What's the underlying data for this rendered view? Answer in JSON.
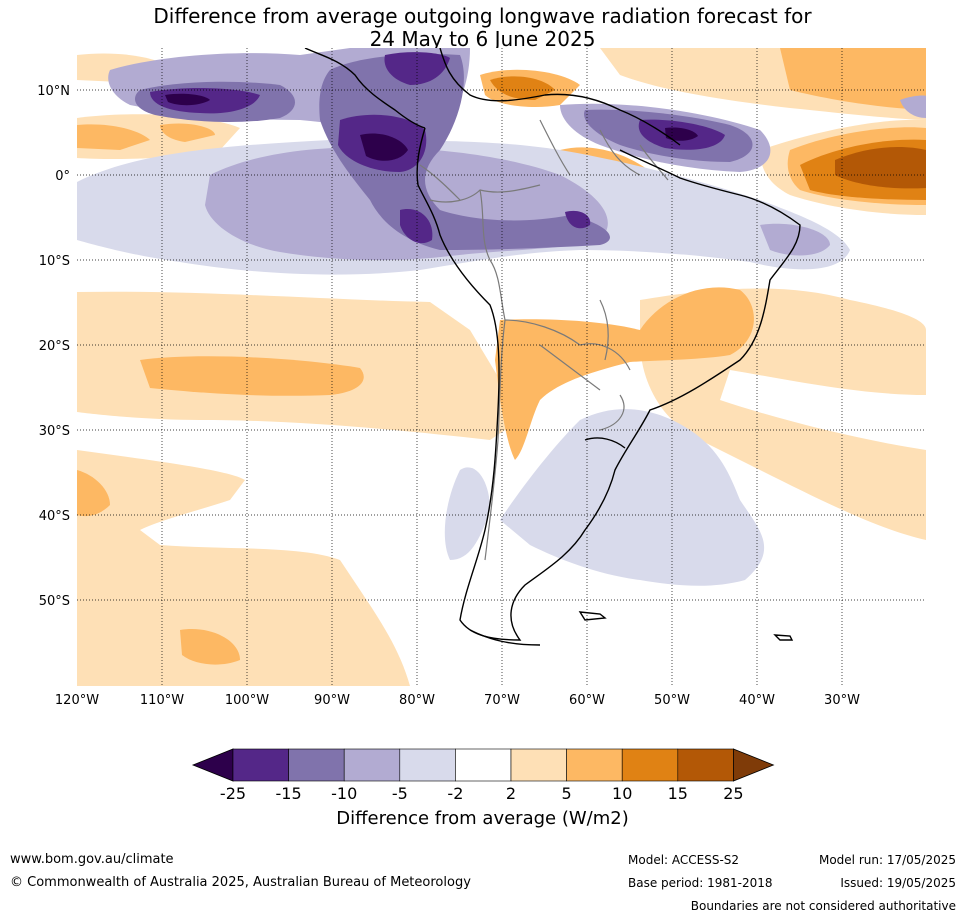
{
  "title_line1": "Difference from average outgoing longwave radiation forecast for",
  "title_line2": "24 May to 6 June 2025",
  "lat_labels": [
    "10°N",
    "0°",
    "10°S",
    "20°S",
    "30°S",
    "40°S",
    "50°S"
  ],
  "lon_labels": [
    "120°W",
    "110°W",
    "100°W",
    "90°W",
    "80°W",
    "70°W",
    "60°W",
    "50°W",
    "40°W",
    "30°W"
  ],
  "colorbar": {
    "ticks": [
      "-25",
      "-15",
      "-10",
      "-5",
      "-2",
      "2",
      "5",
      "10",
      "15",
      "25"
    ],
    "colors": [
      "#2d004b",
      "#542788",
      "#8073ac",
      "#b2abd2",
      "#d8daeb",
      "#ffffff",
      "#fee0b6",
      "#fdb863",
      "#e08214",
      "#b35806",
      "#7f3b08"
    ],
    "title": "Difference from average (W/m2)"
  },
  "footer": {
    "website": "www.bom.gov.au/climate",
    "copyright": "© Commonwealth of Australia 2025, Australian Bureau of Meteorology",
    "model": "Model: ACCESS-S2",
    "base_period": "Base period: 1981-2018",
    "model_run": "Model run: 17/05/2025",
    "issued": "Issued: 19/05/2025",
    "boundaries_note": "Boundaries are not considered authoritative"
  }
}
